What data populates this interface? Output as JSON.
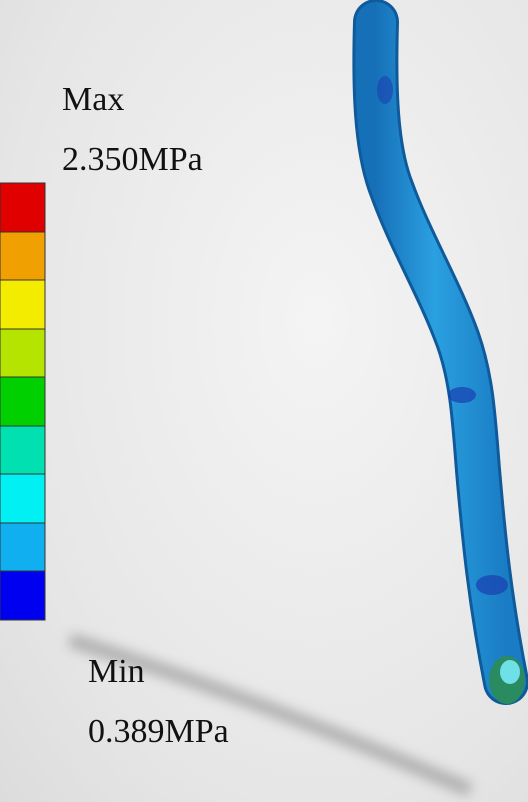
{
  "legend": {
    "max_label": "Max",
    "max_value": "2.350MPa",
    "min_label": "Min",
    "min_value": "0.389MPa"
  }
}
